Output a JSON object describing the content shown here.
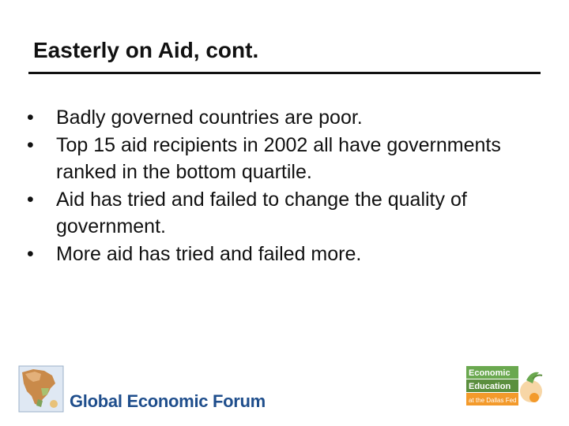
{
  "slide": {
    "title": "Easterly on Aid, cont.",
    "bullet_glyph": "•",
    "bullets": [
      "Badly governed countries are poor.",
      "Top 15 aid recipients in 2002 all have governments ranked in the bottom quartile.",
      "Aid has tried and failed to change the quality of government.",
      "More aid has tried and failed more."
    ]
  },
  "footer": {
    "left_logo_text": "Global Economic Forum",
    "right_logo_lines": [
      "Economic",
      "Education",
      "at the Dallas Fed"
    ]
  },
  "colors": {
    "title_rule": "#111111",
    "forum_blue": "#1f4e8c",
    "econ_green": "#6aa84f",
    "econ_orange": "#f39a2b"
  }
}
